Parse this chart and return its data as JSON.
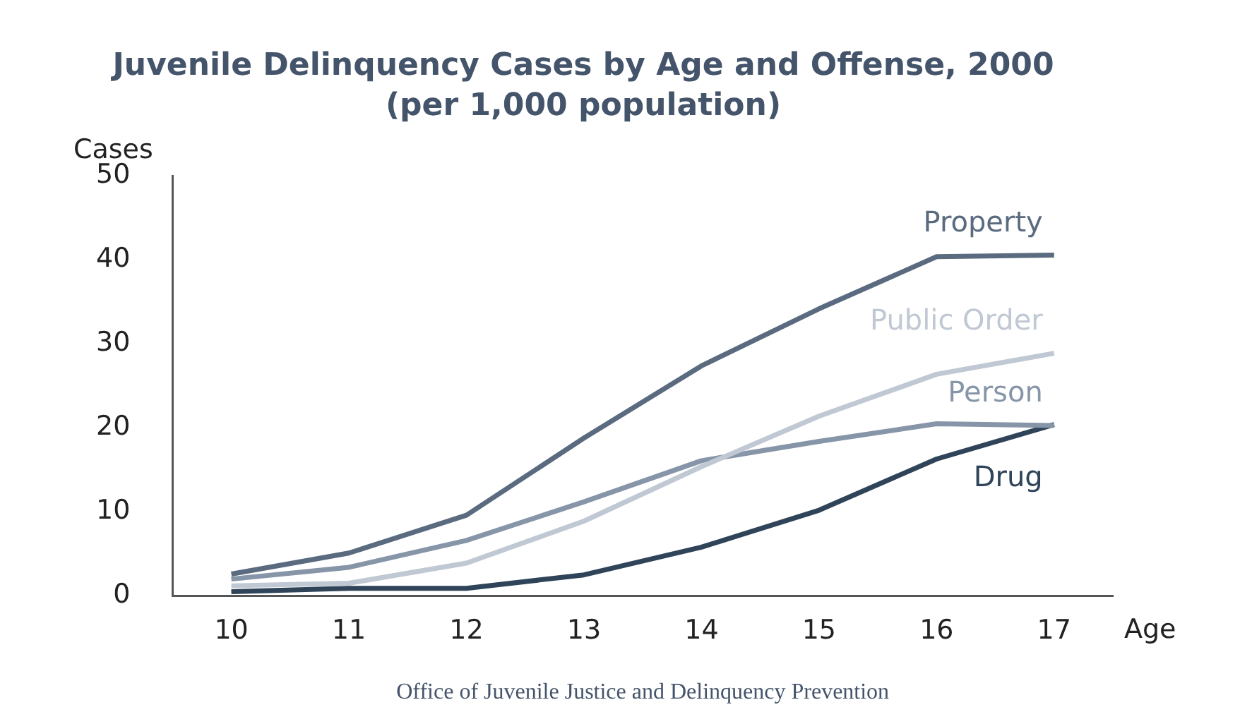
{
  "chart_data": {
    "type": "line",
    "title": "Juvenile Delinquency Cases by Age and Offense, 2000",
    "subtitle": "(per 1,000 population)",
    "xlabel": "Age",
    "ylabel": "Cases",
    "categories": [
      "10",
      "11",
      "12",
      "13",
      "14",
      "15",
      "16",
      "17"
    ],
    "series": [
      {
        "name": "Property",
        "color": "#5a6b80",
        "values": [
          2.6,
          5.1,
          9.6,
          18.8,
          27.4,
          34.2,
          40.4,
          40.6
        ]
      },
      {
        "name": "Public Order",
        "color": "#c0c8d4",
        "values": [
          1.2,
          1.5,
          3.9,
          8.9,
          15.4,
          21.4,
          26.4,
          28.9
        ]
      },
      {
        "name": "Person",
        "color": "#8795a8",
        "values": [
          2.0,
          3.4,
          6.6,
          11.2,
          16.1,
          18.4,
          20.5,
          20.3
        ]
      },
      {
        "name": "Drug",
        "color": "#2f4458",
        "values": [
          0.5,
          0.9,
          0.9,
          2.5,
          5.8,
          10.2,
          16.3,
          20.4
        ]
      }
    ],
    "ylim": [
      0,
      50
    ],
    "yticks": [
      0,
      10,
      20,
      30,
      40,
      50
    ],
    "grid": false,
    "legend": false,
    "marker": "none",
    "line_style": "solid",
    "annotations": [
      "Office of Juvenile Justice and Delinquency Prevention"
    ]
  }
}
